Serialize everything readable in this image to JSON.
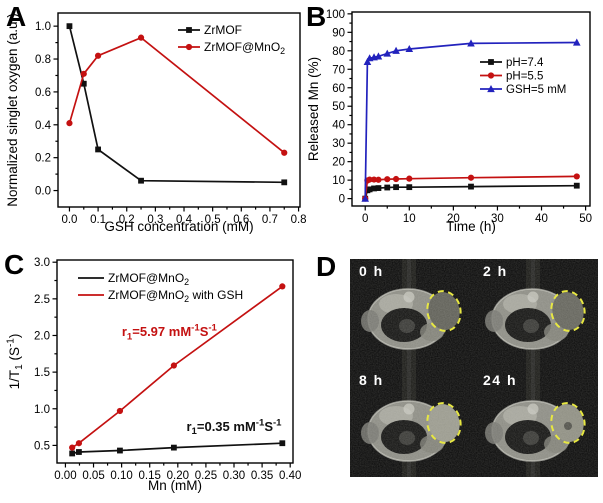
{
  "panels": {
    "A": {
      "label": "A"
    },
    "B": {
      "label": "B"
    },
    "C": {
      "label": "C"
    },
    "D": {
      "label": "D",
      "tumor_outline_color": "#e8e830",
      "frames": [
        {
          "label": "0 h",
          "tumor_shade": "#5e5e56",
          "spot": false
        },
        {
          "label": "2 h",
          "tumor_shade": "#63635b",
          "spot": false
        },
        {
          "label": "8 h",
          "tumor_shade": "#9a9a8e",
          "spot": false
        },
        {
          "label": "24 h",
          "tumor_shade": "#8e8e82",
          "spot": true
        }
      ]
    }
  },
  "colors": {
    "black_series": "#111111",
    "red_series": "#c41111",
    "blue_series": "#2222bd",
    "tumor_outline": "#e8e830"
  },
  "chart_data": [
    {
      "panel": "A",
      "type": "line",
      "title": "",
      "xlabel": "GSH concentration (mM)",
      "ylabel": "Normalized singlet oxygen (a.u.)",
      "xlim": [
        -0.04,
        0.805
      ],
      "ylim": [
        -0.1,
        1.08
      ],
      "xticks": [
        0.0,
        0.1,
        0.2,
        0.3,
        0.4,
        0.5,
        0.6,
        0.7,
        0.8
      ],
      "yticks": [
        0.0,
        0.2,
        0.4,
        0.6,
        0.8,
        1.0
      ],
      "x_decimals": 1,
      "y_decimals": 1,
      "grid": false,
      "legend_position": "inside-top-right",
      "series": [
        {
          "name": "ZrMOF",
          "color": "#111111",
          "marker": "square",
          "x": [
            0.0,
            0.05,
            0.1,
            0.25,
            0.75
          ],
          "y": [
            1.0,
            0.65,
            0.25,
            0.06,
            0.05
          ]
        },
        {
          "name": "ZrMOF@MnO_2_",
          "color": "#c41111",
          "marker": "circle",
          "x": [
            0.0,
            0.05,
            0.1,
            0.25,
            0.75
          ],
          "y": [
            0.41,
            0.71,
            0.82,
            0.93,
            0.23
          ]
        }
      ]
    },
    {
      "panel": "B",
      "type": "line",
      "title": "",
      "xlabel": "Time (h)",
      "ylabel": "Released Mn (%)",
      "xlim": [
        -3,
        51
      ],
      "ylim": [
        -4,
        101
      ],
      "xticks": [
        0,
        10,
        20,
        30,
        40,
        50
      ],
      "yticks": [
        0,
        10,
        20,
        30,
        40,
        50,
        60,
        70,
        80,
        90,
        100
      ],
      "x_decimals": 0,
      "y_decimals": 0,
      "grid": false,
      "legend_position": "inside-right-middle",
      "series": [
        {
          "name": "pH=7.4",
          "color": "#111111",
          "marker": "square",
          "x": [
            0,
            0.5,
            1,
            2,
            3,
            5,
            7,
            10,
            24,
            48
          ],
          "y": [
            0,
            4.5,
            5.0,
            5.5,
            5.7,
            6.0,
            6.2,
            6.2,
            6.5,
            7.0
          ]
        },
        {
          "name": "pH=5.5",
          "color": "#c41111",
          "marker": "circle",
          "x": [
            0,
            0.5,
            1,
            2,
            3,
            5,
            7,
            10,
            24,
            48
          ],
          "y": [
            0,
            9.8,
            10.3,
            10.3,
            10.2,
            10.5,
            10.6,
            10.8,
            11.3,
            12.0
          ]
        },
        {
          "name": "GSH=5 mM",
          "color": "#2222bd",
          "marker": "triangle",
          "x": [
            0,
            0.5,
            1,
            2,
            3,
            5,
            7,
            10,
            24,
            48
          ],
          "y": [
            0,
            74,
            76,
            76.5,
            77,
            78.5,
            80,
            81,
            84,
            84.5
          ]
        }
      ]
    },
    {
      "panel": "C",
      "type": "line",
      "title": "",
      "xlabel": "Mn (mM)",
      "ylabel": "1/T_1_ (S^-1^)",
      "xlim": [
        -0.015,
        0.405
      ],
      "ylim": [
        0.26,
        3.03
      ],
      "xticks": [
        0.0,
        0.05,
        0.1,
        0.15,
        0.2,
        0.25,
        0.3,
        0.35,
        0.4
      ],
      "yticks": [
        0.5,
        1.0,
        1.5,
        2.0,
        2.5,
        3.0
      ],
      "x_decimals": 2,
      "y_decimals": 1,
      "grid": false,
      "legend_position": "inside-top-left",
      "series": [
        {
          "name": "ZrMOF@MnO_2_",
          "color": "#111111",
          "marker": "square",
          "x": [
            0.012,
            0.024,
            0.097,
            0.193,
            0.386
          ],
          "y": [
            0.39,
            0.41,
            0.43,
            0.47,
            0.53
          ]
        },
        {
          "name": "ZrMOF@MnO_2_ with GSH",
          "color": "#c41111",
          "marker": "circle",
          "x": [
            0.012,
            0.024,
            0.097,
            0.193,
            0.386
          ],
          "y": [
            0.47,
            0.53,
            0.97,
            1.59,
            2.67
          ]
        }
      ],
      "annotations": [
        {
          "text": "r_1_=5.97 mM^-1^S^-1^",
          "x": 0.185,
          "y": 1.99,
          "color": "#c41111"
        },
        {
          "text": "r_1_=0.35 mM^-1^S^-1^",
          "x": 0.3,
          "y": 0.7,
          "color": "#111111"
        }
      ]
    },
    {
      "panel": "D",
      "type": "image-grid",
      "title": "",
      "frame_labels": [
        "0 h",
        "2 h",
        "8 h",
        "24 h"
      ]
    }
  ]
}
